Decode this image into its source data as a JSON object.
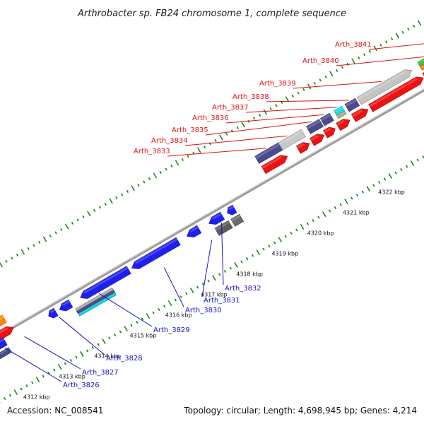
{
  "title": "Arthrobacter sp. FB24 chromosome 1, complete sequence",
  "footer": {
    "accession": "Accession: NC_008541",
    "summary": "Topology: circular; Length: 4,698,945 bp; Genes: 4,214"
  },
  "colors": {
    "forward_label": "#dd1111",
    "reverse_label": "#1111cc",
    "backbone": "#9a9a9a",
    "tick": "#1a8a1a"
  },
  "kbp_labels": [
    "4312 kbp",
    "4313 kbp",
    "4314 kbp",
    "4315 kbp",
    "4316 kbp",
    "4317 kbp",
    "4318 kbp",
    "4319 kbp",
    "4320 kbp",
    "4321 kbp",
    "4322 kbp"
  ],
  "forward_labels": [
    "Arth_3833",
    "Arth_3834",
    "Arth_3835",
    "Arth_3836",
    "Arth_3837",
    "Arth_3838",
    "Arth_3839",
    "Arth_3840",
    "Arth_3841"
  ],
  "reverse_labels": [
    "Arth_3826",
    "Arth_3827",
    "Arth_3828",
    "Arth_3829",
    "Arth_3830",
    "Arth_3831",
    "Arth_3832"
  ]
}
